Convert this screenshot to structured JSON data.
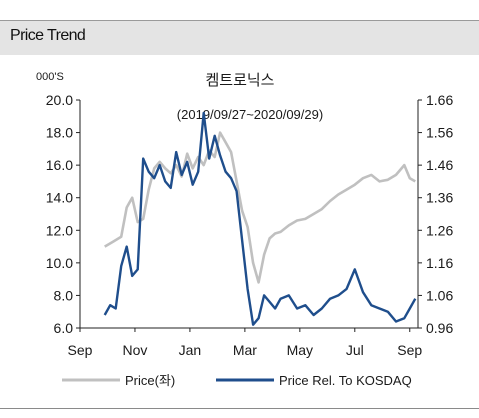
{
  "section_title": "Price Trend",
  "chart_data": {
    "type": "line",
    "title": "켐트로닉스",
    "subtitle": "(2019/09/27~2020/09/29)",
    "left_unit": "000'S",
    "x_tick_labels": [
      "Sep",
      "Nov",
      "Jan",
      "Mar",
      "May",
      "Jul",
      "Sep"
    ],
    "x_tick_month_index": [
      0,
      2,
      4,
      6,
      8,
      10,
      12
    ],
    "x_range_months": [
      0,
      12.3
    ],
    "y_left": {
      "min": 6.0,
      "max": 20.0,
      "ticks": [
        "6.0",
        "8.0",
        "10.0",
        "12.0",
        "14.0",
        "16.0",
        "18.0",
        "20.0"
      ]
    },
    "y_right": {
      "min": 0.96,
      "max": 1.66,
      "ticks": [
        "0.96",
        "1.06",
        "1.16",
        "1.26",
        "1.36",
        "1.46",
        "1.56",
        "1.66"
      ]
    },
    "series": [
      {
        "name": "Price(좌)",
        "axis": "left",
        "color": "#c0c0c0",
        "x_month": [
          0.9,
          1.2,
          1.5,
          1.7,
          1.9,
          2.1,
          2.3,
          2.5,
          2.7,
          2.9,
          3.1,
          3.3,
          3.5,
          3.7,
          3.9,
          4.1,
          4.3,
          4.5,
          4.7,
          4.9,
          5.1,
          5.3,
          5.5,
          5.7,
          5.9,
          6.1,
          6.3,
          6.5,
          6.7,
          6.9,
          7.1,
          7.3,
          7.6,
          7.9,
          8.2,
          8.5,
          8.8,
          9.1,
          9.4,
          9.7,
          10.0,
          10.3,
          10.6,
          10.9,
          11.2,
          11.5,
          11.8,
          12.0,
          12.2
        ],
        "values": [
          11.0,
          11.3,
          11.6,
          13.4,
          14.0,
          12.5,
          12.7,
          14.5,
          15.8,
          16.2,
          15.8,
          15.5,
          16.0,
          15.3,
          16.7,
          15.8,
          16.5,
          16.0,
          16.9,
          16.5,
          18.0,
          17.4,
          16.8,
          15.0,
          13.2,
          12.2,
          10.0,
          8.8,
          10.5,
          11.5,
          11.8,
          11.9,
          12.3,
          12.6,
          12.7,
          13.0,
          13.3,
          13.8,
          14.2,
          14.5,
          14.8,
          15.2,
          15.4,
          15.0,
          15.1,
          15.4,
          16.0,
          15.2,
          15.0
        ]
      },
      {
        "name": "Price Rel. To KOSDAQ",
        "axis": "right",
        "color": "#1f4e8c",
        "x_month": [
          0.9,
          1.1,
          1.3,
          1.5,
          1.7,
          1.9,
          2.1,
          2.3,
          2.5,
          2.7,
          2.9,
          3.1,
          3.3,
          3.5,
          3.7,
          3.9,
          4.1,
          4.3,
          4.5,
          4.7,
          4.9,
          5.1,
          5.3,
          5.5,
          5.7,
          5.9,
          6.1,
          6.3,
          6.5,
          6.7,
          6.9,
          7.1,
          7.3,
          7.6,
          7.9,
          8.2,
          8.5,
          8.8,
          9.1,
          9.4,
          9.7,
          10.0,
          10.3,
          10.6,
          10.9,
          11.2,
          11.5,
          11.8,
          12.0,
          12.2
        ],
        "values": [
          1.0,
          1.03,
          1.02,
          1.15,
          1.21,
          1.12,
          1.14,
          1.48,
          1.44,
          1.42,
          1.46,
          1.41,
          1.39,
          1.5,
          1.43,
          1.47,
          1.4,
          1.44,
          1.62,
          1.48,
          1.55,
          1.49,
          1.44,
          1.42,
          1.38,
          1.23,
          1.08,
          0.97,
          0.99,
          1.06,
          1.04,
          1.02,
          1.05,
          1.06,
          1.02,
          1.03,
          1.0,
          1.02,
          1.05,
          1.06,
          1.08,
          1.14,
          1.07,
          1.03,
          1.02,
          1.01,
          0.98,
          0.99,
          1.02,
          1.05
        ]
      }
    ],
    "legend": [
      "Price(좌)",
      "Price Rel. To KOSDAQ"
    ],
    "legend_position": "bottom",
    "grid": false
  }
}
